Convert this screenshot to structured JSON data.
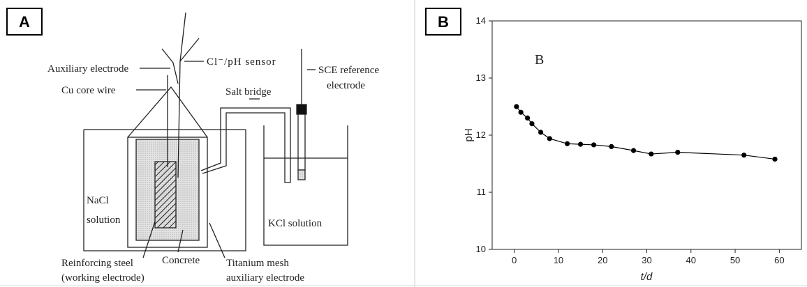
{
  "panels": [
    "A",
    "B"
  ],
  "diagram": {
    "auxiliary_electrode": "Auxiliary electrode",
    "sensor": "Cl⁻/pH sensor",
    "sce": [
      "SCE reference",
      "electrode"
    ],
    "cu_core_wire": "Cu core wire",
    "salt_bridge": "Salt bridge",
    "nacl": [
      "NaCl",
      "solution"
    ],
    "kcl": "KCl solution",
    "steel": [
      "Reinforcing steel",
      "(working electrode)"
    ],
    "concrete": "Concrete",
    "mesh": [
      "Titanium mesh",
      "auxiliary electrode"
    ]
  },
  "chart_data": {
    "type": "line",
    "annotation": "B",
    "ylabel": "pH",
    "xlabel": "t/d",
    "x": [
      0.5,
      1.5,
      3,
      4,
      6,
      8,
      12,
      15,
      18,
      22,
      27,
      31,
      37,
      52,
      59
    ],
    "values": [
      12.5,
      12.4,
      12.3,
      12.2,
      12.05,
      11.94,
      11.85,
      11.84,
      11.83,
      11.8,
      11.73,
      11.67,
      11.7,
      11.65,
      11.58
    ],
    "color": "#000000",
    "xlim": [
      -5,
      65
    ],
    "xticks": [
      0,
      10,
      20,
      30,
      40,
      50,
      60
    ],
    "ylim": [
      10,
      14
    ],
    "yticks": [
      10,
      11,
      12,
      13,
      14
    ]
  }
}
